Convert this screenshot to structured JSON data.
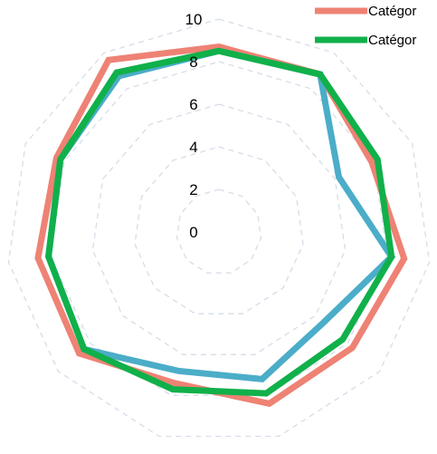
{
  "chart_data": {
    "type": "radar",
    "radial_ticks": [
      "0",
      "2",
      "4",
      "6",
      "8",
      "10"
    ],
    "rlim": [
      0,
      10
    ],
    "axes_count": 11,
    "grid": "dashed",
    "legend_position": "top-right",
    "series": [
      {
        "name": "Catégor",
        "color": "#ee8274",
        "values": [
          8.7,
          8.8,
          7.9,
          8.8,
          8.3,
          8.4,
          7.4,
          8.7,
          8.6,
          8.4,
          9.6
        ]
      },
      {
        "name": "Catégor",
        "color": "#4badc8",
        "values": [
          8.5,
          8.8,
          6.2,
          8.2,
          6.5,
          7.2,
          6.8,
          8.4,
          8.1,
          8.2,
          8.7
        ]
      },
      {
        "name": "Catégor",
        "color": "#10b04a",
        "values": [
          8.5,
          8.8,
          8.2,
          8.2,
          7.7,
          7.9,
          7.7,
          8.4,
          8.1,
          8.2,
          8.9
        ]
      }
    ],
    "legend": [
      {
        "label": "Catégor",
        "color": "#ee8274"
      },
      {
        "label": "Catégor",
        "color": "#10b04a"
      }
    ]
  }
}
